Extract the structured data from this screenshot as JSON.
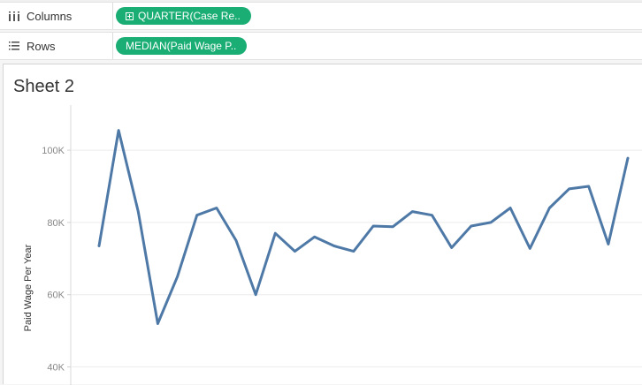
{
  "shelves": {
    "columns": {
      "label": "Columns",
      "icon": "columns-icon",
      "pill": "QUARTER(Case Re.."
    },
    "rows": {
      "label": "Rows",
      "icon": "rows-icon",
      "pill": "MEDIAN(Paid Wage P.."
    }
  },
  "sheet": {
    "title": "Sheet 2"
  },
  "colors": {
    "pill": "#1aad74",
    "line": "#4e79a7",
    "grid": "#ececec"
  },
  "chart_data": {
    "type": "line",
    "ylabel": "Paid Wage Per Year",
    "xlabel": "",
    "yticks": [
      40000,
      60000,
      80000,
      100000
    ],
    "ytick_labels": [
      "40K",
      "60K",
      "80K",
      "100K"
    ],
    "ylim": [
      35000,
      112000
    ],
    "grid": true,
    "series": [
      {
        "values": [
          73500,
          105500,
          83000,
          52000,
          65000,
          82000,
          84000,
          75000,
          60000,
          77000,
          72000,
          76000,
          73500,
          72000,
          79000,
          78800,
          83000,
          82000,
          73000,
          79000,
          80000,
          84000,
          72800,
          84000,
          89300,
          90000,
          74000,
          97800
        ]
      }
    ]
  }
}
